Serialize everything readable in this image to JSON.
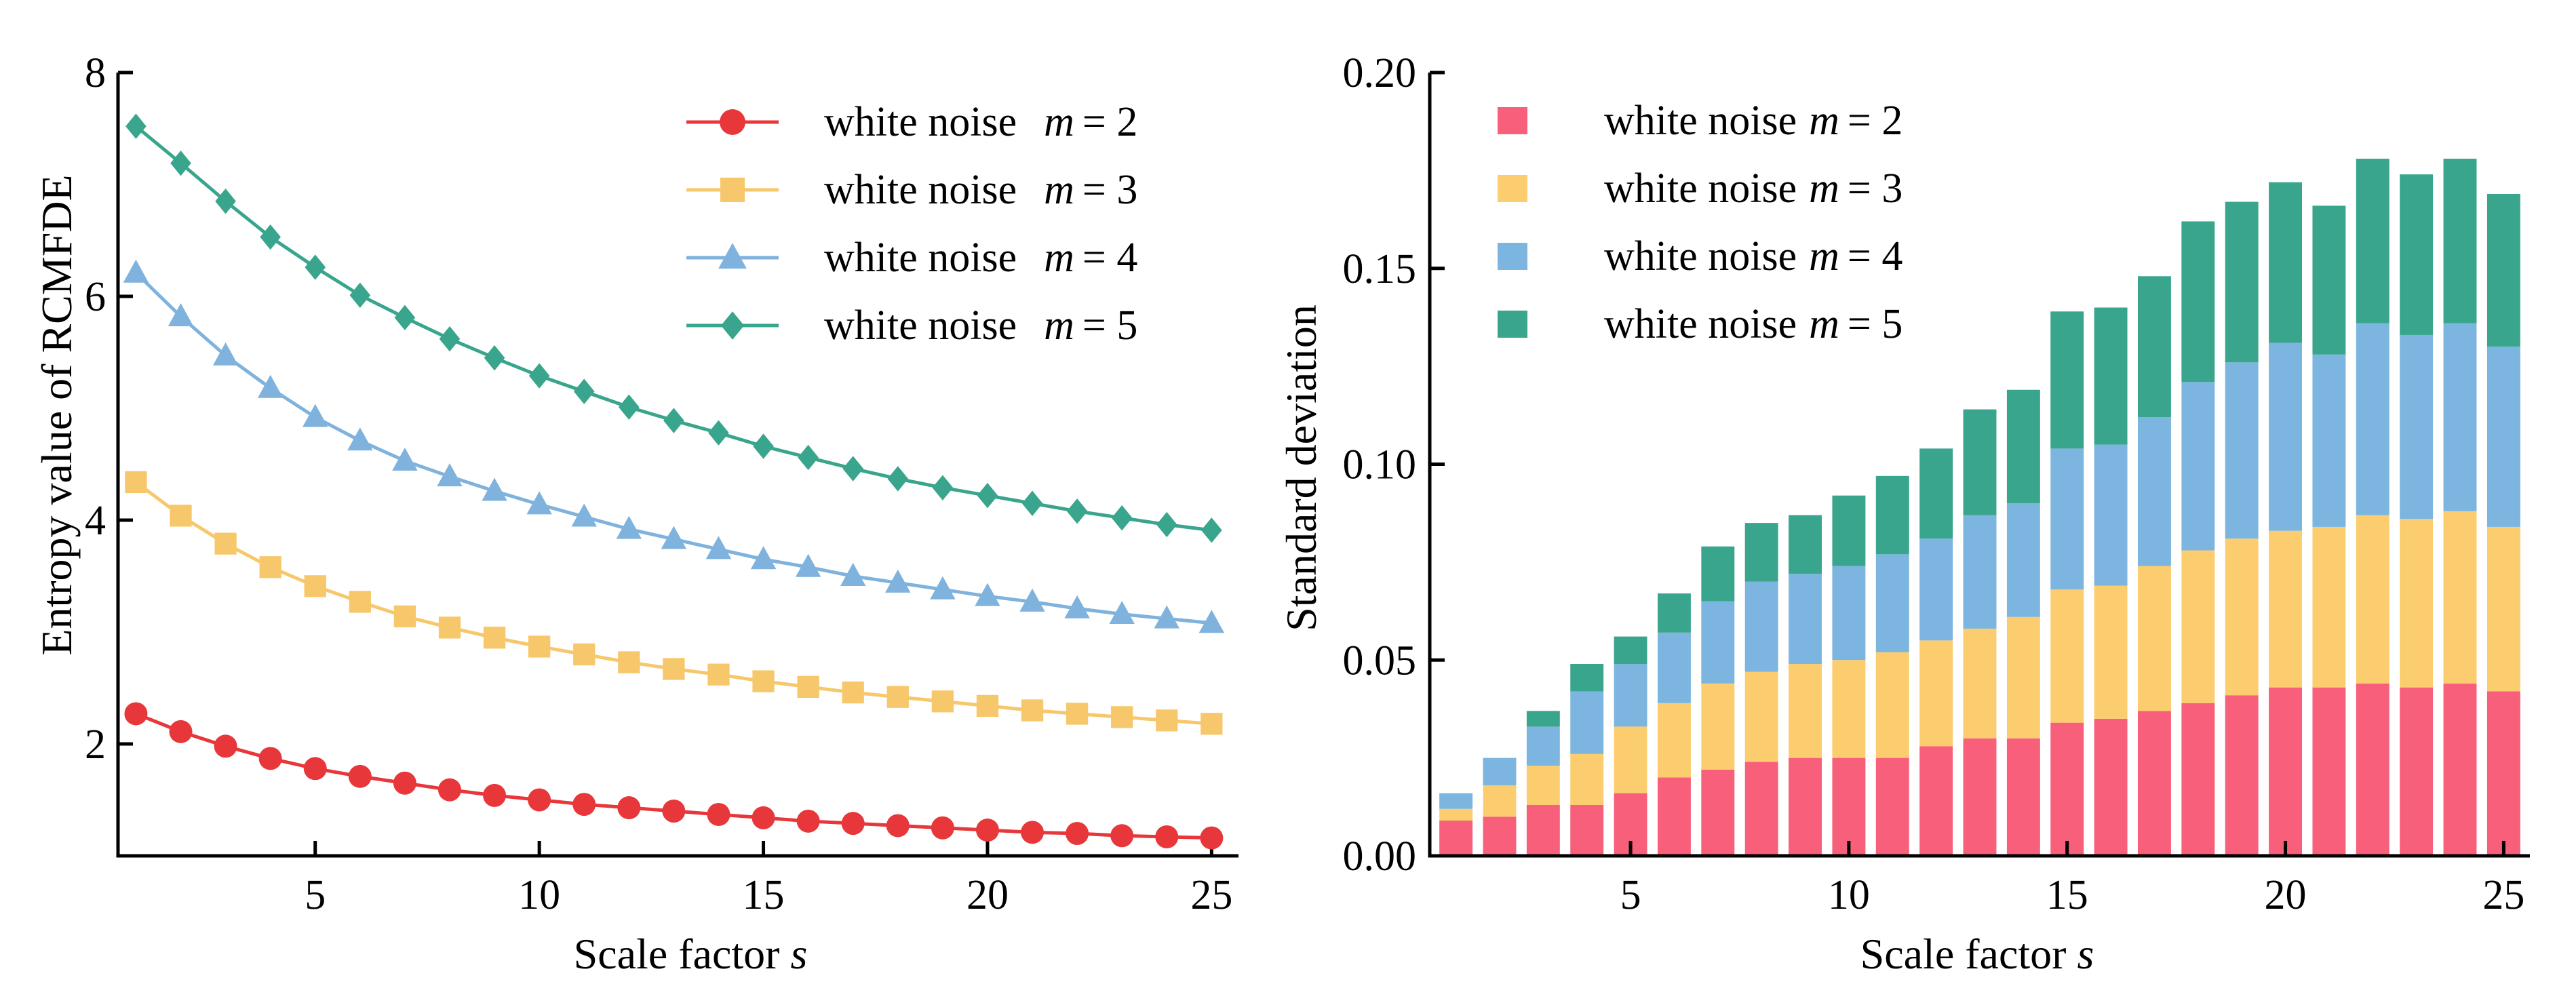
{
  "chart_data": [
    {
      "type": "line",
      "xlabel": "Scale factor",
      "xlabel_var": "s",
      "ylabel": "Entropy value of RCMFDE",
      "xlim": [
        0.6,
        25.6
      ],
      "ylim": [
        1.0,
        8.0
      ],
      "xticks": [
        "5",
        "10",
        "15",
        "20",
        "25"
      ],
      "yticks": [
        "2",
        "4",
        "6",
        "8"
      ],
      "legend_position": "top-right",
      "x": [
        1,
        2,
        3,
        4,
        5,
        6,
        7,
        8,
        9,
        10,
        11,
        12,
        13,
        14,
        15,
        16,
        17,
        18,
        19,
        20,
        21,
        22,
        23,
        24,
        25
      ],
      "series": [
        {
          "name": "white noise",
          "m_label": "m",
          "m_value": "= 2",
          "color": "#e8373a",
          "marker": "circle",
          "values": [
            2.27,
            2.11,
            1.98,
            1.87,
            1.78,
            1.71,
            1.65,
            1.59,
            1.54,
            1.5,
            1.46,
            1.43,
            1.4,
            1.37,
            1.34,
            1.31,
            1.29,
            1.27,
            1.25,
            1.23,
            1.21,
            1.2,
            1.18,
            1.17,
            1.16
          ]
        },
        {
          "name": "white noise",
          "m_label": "m",
          "m_value": "= 3",
          "color": "#f7c86b",
          "marker": "square",
          "values": [
            4.34,
            4.04,
            3.79,
            3.58,
            3.41,
            3.27,
            3.14,
            3.04,
            2.95,
            2.87,
            2.8,
            2.73,
            2.67,
            2.62,
            2.56,
            2.51,
            2.46,
            2.42,
            2.38,
            2.34,
            2.3,
            2.27,
            2.24,
            2.21,
            2.18
          ]
        },
        {
          "name": "white noise",
          "m_label": "m",
          "m_value": "= 4",
          "color": "#7fb2dc",
          "marker": "triangle",
          "values": [
            6.21,
            5.82,
            5.47,
            5.18,
            4.92,
            4.71,
            4.53,
            4.39,
            4.26,
            4.14,
            4.03,
            3.92,
            3.83,
            3.74,
            3.65,
            3.58,
            3.5,
            3.44,
            3.38,
            3.32,
            3.27,
            3.21,
            3.16,
            3.12,
            3.08
          ]
        },
        {
          "name": "white noise",
          "m_label": "m",
          "m_value": "= 5",
          "color": "#3aa58d",
          "marker": "diamond",
          "values": [
            7.52,
            7.19,
            6.85,
            6.53,
            6.26,
            6.01,
            5.81,
            5.62,
            5.45,
            5.29,
            5.15,
            5.01,
            4.89,
            4.78,
            4.66,
            4.56,
            4.46,
            4.37,
            4.29,
            4.22,
            4.15,
            4.08,
            4.02,
            3.96,
            3.91
          ]
        }
      ]
    },
    {
      "type": "bar",
      "stacked": true,
      "xlabel": "Scale factor",
      "xlabel_var": "s",
      "ylabel": "Standard deviation",
      "xlim": [
        0.4,
        25.6
      ],
      "ylim": [
        0.0,
        0.2
      ],
      "xticks": [
        "5",
        "10",
        "15",
        "20",
        "25"
      ],
      "yticks": [
        "0.00",
        "0.05",
        "0.10",
        "0.15",
        "0.20"
      ],
      "legend_position": "top-left",
      "categories": [
        1,
        2,
        3,
        4,
        5,
        6,
        7,
        8,
        9,
        10,
        11,
        12,
        13,
        14,
        15,
        16,
        17,
        18,
        19,
        20,
        21,
        22,
        23,
        24,
        25
      ],
      "series": [
        {
          "name": "white noise",
          "m_label": "m",
          "m_value": "= 2",
          "color": "#f85f7a",
          "values": [
            0.009,
            0.01,
            0.013,
            0.013,
            0.016,
            0.02,
            0.022,
            0.024,
            0.025,
            0.025,
            0.025,
            0.028,
            0.03,
            0.03,
            0.034,
            0.035,
            0.037,
            0.039,
            0.041,
            0.043,
            0.043,
            0.044,
            0.043,
            0.044,
            0.042
          ]
        },
        {
          "name": "white noise",
          "m_label": "m",
          "m_value": "= 3",
          "color": "#fccd6e",
          "values": [
            0.003,
            0.008,
            0.01,
            0.013,
            0.017,
            0.019,
            0.022,
            0.023,
            0.024,
            0.025,
            0.027,
            0.027,
            0.028,
            0.031,
            0.034,
            0.034,
            0.037,
            0.039,
            0.04,
            0.04,
            0.041,
            0.043,
            0.043,
            0.044,
            0.042
          ]
        },
        {
          "name": "white noise",
          "m_label": "m",
          "m_value": "= 4",
          "color": "#7cb5df",
          "values": [
            0.004,
            0.007,
            0.01,
            0.016,
            0.016,
            0.018,
            0.021,
            0.023,
            0.023,
            0.024,
            0.025,
            0.026,
            0.029,
            0.029,
            0.036,
            0.036,
            0.038,
            0.043,
            0.045,
            0.048,
            0.044,
            0.049,
            0.047,
            0.048,
            0.046
          ]
        },
        {
          "name": "white noise",
          "m_label": "m",
          "m_value": "= 5",
          "color": "#3aa58d",
          "values": [
            0.0,
            0.0,
            0.004,
            0.007,
            0.007,
            0.01,
            0.014,
            0.015,
            0.015,
            0.018,
            0.02,
            0.023,
            0.027,
            0.029,
            0.035,
            0.035,
            0.036,
            0.041,
            0.041,
            0.041,
            0.038,
            0.042,
            0.041,
            0.042,
            0.039
          ]
        }
      ]
    }
  ]
}
